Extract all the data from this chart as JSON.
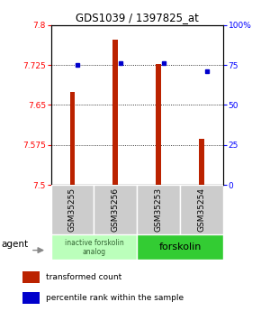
{
  "title": "GDS1039 / 1397825_at",
  "samples": [
    "GSM35255",
    "GSM35256",
    "GSM35253",
    "GSM35254"
  ],
  "transformed_counts": [
    7.675,
    7.772,
    7.726,
    7.586
  ],
  "percentile_ranks": [
    75,
    76,
    76,
    71
  ],
  "ylim": [
    7.5,
    7.8
  ],
  "yticks_left": [
    7.5,
    7.575,
    7.65,
    7.725,
    7.8
  ],
  "yticks_right": [
    0,
    25,
    50,
    75,
    100
  ],
  "bar_color": "#bb2200",
  "percentile_color": "#0000cc",
  "groups": [
    {
      "label": "inactive forskolin\nanalog",
      "color": "#bbffbb",
      "samples": [
        0,
        1
      ]
    },
    {
      "label": "forskolin",
      "color": "#33cc33",
      "samples": [
        2,
        3
      ]
    }
  ],
  "agent_label": "agent",
  "legend_bar_label": "transformed count",
  "legend_pct_label": "percentile rank within the sample",
  "plot_bg": "#ffffff",
  "sample_box_color": "#cccccc"
}
